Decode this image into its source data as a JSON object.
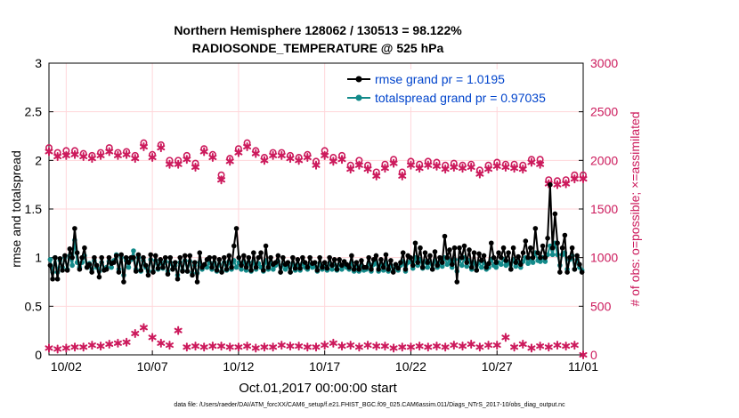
{
  "title_line1": "Northern Hemisphere 128062 / 130513 = 98.122%",
  "title_line2": "RADIOSONDE_TEMPERATURE @ 525 hPa",
  "footer": "data file: /Users/raeder/DAI/ATM_forcXX/CAM6_setup/f.e21.FHIST_BGC.f09_025.CAM6assim.011/Diags_NTrS_2017-10/obs_diag_output.nc",
  "colors": {
    "rmse": "#000000",
    "spread": "#138a8a",
    "obs": "#cc1a5c",
    "legend_text": "#0044cc"
  },
  "chart_data": {
    "type": "line",
    "xlabel": "Oct.01,2017 00:00:00 start",
    "ylabel_left": "rmse and totalspread",
    "ylabel_right": "# of obs: o=possible; ×=assimilated",
    "xlim": [
      0,
      31
    ],
    "ylim_left": [
      0,
      3
    ],
    "ylim_right": [
      0,
      3000
    ],
    "yticks_left": [
      "0",
      "0.5",
      "1",
      "1.5",
      "2",
      "2.5",
      "3"
    ],
    "yticks_right": [
      "0",
      "500",
      "1000",
      "1500",
      "2000",
      "2500",
      "3000"
    ],
    "xticks": [
      {
        "pos": 1,
        "label": "10/02"
      },
      {
        "pos": 6,
        "label": "10/07"
      },
      {
        "pos": 11,
        "label": "10/12"
      },
      {
        "pos": 16,
        "label": "10/17"
      },
      {
        "pos": 21,
        "label": "10/22"
      },
      {
        "pos": 26,
        "label": "10/27"
      },
      {
        "pos": 31,
        "label": "11/01"
      }
    ],
    "legend": [
      "rmse grand pr = 1.0195",
      "totalspread grand pr = 0.97035"
    ],
    "legend_position": "top-right",
    "rmse": [
      0.92,
      0.78,
      1.0,
      0.78,
      0.99,
      0.87,
      1.02,
      0.87,
      1.09,
      1.0,
      1.3,
      1.05,
      0.88,
      1.0,
      1.1,
      0.9,
      0.93,
      0.85,
      1.0,
      0.92,
      0.8,
      1.0,
      0.87,
      0.88,
      1.0,
      0.94,
      0.95,
      1.02,
      0.85,
      1.03,
      0.75,
      1.0,
      0.95,
      1.0,
      1.0,
      0.86,
      1.03,
      0.87,
      1.0,
      0.92,
      0.82,
      1.03,
      0.85,
      1.02,
      0.89,
      0.98,
      0.9,
      1.0,
      0.83,
      1.0,
      0.88,
      0.95,
      0.78,
      1.0,
      0.86,
      1.02,
      0.86,
      1.02,
      0.82,
      0.95,
      0.75,
      1.05,
      0.9,
      0.93,
      0.98,
      1.0,
      0.9,
      1.0,
      0.87,
      0.98,
      0.85,
      1.0,
      0.88,
      1.02,
      0.9,
      1.12,
      1.3,
      1.0,
      0.92,
      1.02,
      0.9,
      1.0,
      0.87,
      1.05,
      0.9,
      1.0,
      1.05,
      0.87,
      1.12,
      0.9,
      1.0,
      0.93,
      0.95,
      1.02,
      0.85,
      1.0,
      0.93,
      0.95,
      0.85,
      1.0,
      0.89,
      0.98,
      0.89,
      1.0,
      0.95,
      0.9,
      1.0,
      0.94,
      0.95,
      0.87,
      1.0,
      0.9,
      0.95,
      0.89,
      1.0,
      0.92,
      0.98,
      0.88,
      0.98,
      0.92,
      0.96,
      0.93,
      0.9,
      1.02,
      0.88,
      0.95,
      0.88,
      0.97,
      0.9,
      0.9,
      1.0,
      0.88,
      0.98,
      1.02,
      0.88,
      0.98,
      0.9,
      1.03,
      0.88,
      0.97,
      0.85,
      0.93,
      0.89,
      0.95,
      1.05,
      0.88,
      1.02,
      1.0,
      0.92,
      1.15,
      0.95,
      1.1,
      0.9,
      1.05,
      0.95,
      1.02,
      0.88,
      1.06,
      0.92,
      1.0,
      0.95,
      1.22,
      1.0,
      1.08,
      0.93,
      1.1,
      0.75,
      1.1,
      1.0,
      1.12,
      0.95,
      1.08,
      0.9,
      1.05,
      0.87,
      1.04,
      0.97,
      1.02,
      0.9,
      0.94,
      1.15,
      1.0,
      0.95,
      1.05,
      1.0,
      1.1,
      0.97,
      1.05,
      0.88,
      1.1,
      0.95,
      1.01,
      0.93,
      1.05,
      1.17,
      1.0,
      1.1,
      1.0,
      1.3,
      1.05,
      1.0,
      1.12,
      1.0,
      1.2,
      1.75,
      1.1,
      1.45,
      1.15,
      0.85,
      1.1,
      1.23,
      0.85,
      1.0,
      1.1,
      0.88,
      1.02,
      0.93,
      0.85
    ],
    "totalspread": [
      0.98,
      0.85,
      1.0,
      0.85,
      0.97,
      0.9,
      1.0,
      0.88,
      1.02,
      0.92,
      1.18,
      0.95,
      0.9,
      0.95,
      1.02,
      0.9,
      0.94,
      0.88,
      0.97,
      0.9,
      0.86,
      0.95,
      0.88,
      0.9,
      0.96,
      0.9,
      0.97,
      1.03,
      0.88,
      1.0,
      0.82,
      0.97,
      0.9,
      0.98,
      1.07,
      0.88,
      1.0,
      0.86,
      0.97,
      0.9,
      0.86,
      0.98,
      0.86,
      0.97,
      0.88,
      0.95,
      0.89,
      0.96,
      0.86,
      0.95,
      0.88,
      0.92,
      0.82,
      0.95,
      0.87,
      0.97,
      0.86,
      0.96,
      0.84,
      0.92,
      0.84,
      0.95,
      0.88,
      0.92,
      0.9,
      0.95,
      0.88,
      0.95,
      0.86,
      0.93,
      0.86,
      0.95,
      0.87,
      0.96,
      0.88,
      0.97,
      0.9,
      0.95,
      0.88,
      0.96,
      0.87,
      0.95,
      0.86,
      0.96,
      0.88,
      0.94,
      0.9,
      0.86,
      0.97,
      0.88,
      0.94,
      0.88,
      0.92,
      0.96,
      0.85,
      0.93,
      0.88,
      0.92,
      0.85,
      0.94,
      0.87,
      0.93,
      0.87,
      0.94,
      0.9,
      0.88,
      0.93,
      0.9,
      0.91,
      0.86,
      0.94,
      0.88,
      0.92,
      0.87,
      0.94,
      0.88,
      0.93,
      0.87,
      0.93,
      0.88,
      0.92,
      0.9,
      0.88,
      0.95,
      0.86,
      0.92,
      0.86,
      0.92,
      0.87,
      0.88,
      0.94,
      0.86,
      0.93,
      0.95,
      0.86,
      0.93,
      0.87,
      0.95,
      0.86,
      0.92,
      0.86,
      0.9,
      0.87,
      0.92,
      0.96,
      0.86,
      0.95,
      0.96,
      0.89,
      1.0,
      0.92,
      0.98,
      0.89,
      0.96,
      0.9,
      0.95,
      0.88,
      0.97,
      0.9,
      0.95,
      0.91,
      1.0,
      0.93,
      0.97,
      0.9,
      0.98,
      0.86,
      0.98,
      0.92,
      1.0,
      0.91,
      0.97,
      0.88,
      0.95,
      0.87,
      0.95,
      0.9,
      0.95,
      0.88,
      0.9,
      0.98,
      0.92,
      0.9,
      0.95,
      0.93,
      0.98,
      0.92,
      0.95,
      0.88,
      0.98,
      0.91,
      0.95,
      0.9,
      0.96,
      1.0,
      0.94,
      0.98,
      0.95,
      1.05,
      0.97,
      0.96,
      1.0,
      0.96,
      1.03,
      1.12,
      1.03,
      1.15,
      1.03,
      0.92,
      1.03,
      1.05,
      0.88,
      0.98,
      1.02,
      0.88,
      0.98,
      0.9,
      0.87
    ],
    "obs_days": [
      0,
      1,
      2,
      3,
      4,
      5,
      6,
      7,
      8,
      9,
      10,
      11,
      12,
      13,
      14,
      15,
      16,
      17,
      18,
      19,
      20,
      21,
      22,
      23,
      24,
      25,
      26,
      27,
      28,
      29,
      30,
      31
    ],
    "possible_00": [
      2130,
      2100,
      2070,
      2080,
      2080,
      2050,
      2060,
      2000,
      2050,
      2120,
      1850,
      2120,
      2100,
      2080,
      2050,
      2060,
      2100,
      2050,
      2000,
      1880,
      2010,
      1990,
      1990,
      1950,
      1950,
      1900,
      1980,
      1960,
      2010,
      1800,
      1800,
      1850
    ],
    "possible_12": [
      2080,
      2100,
      2050,
      2130,
      2090,
      2180,
      2160,
      2000,
      1970,
      2060,
      2020,
      2180,
      2030,
      2080,
      2030,
      1990,
      2030,
      1950,
      1950,
      1960,
      1880,
      1960,
      1980,
      1970,
      1960,
      1950,
      1960,
      1950,
      2010,
      1790,
      1850,
      1830
    ],
    "assimilated_00": [
      2090,
      2050,
      2040,
      2050,
      2050,
      2020,
      2030,
      1960,
      2010,
      2090,
      1800,
      2080,
      2070,
      2050,
      2020,
      2030,
      2050,
      2010,
      1950,
      1840,
      1970,
      1950,
      1950,
      1910,
      1920,
      1860,
      1940,
      1920,
      1980,
      1760,
      1760,
      1810
    ],
    "assimilated_12": [
      2040,
      2060,
      2020,
      2090,
      2060,
      2140,
      2130,
      1960,
      1930,
      2030,
      1990,
      2140,
      2000,
      2050,
      2000,
      1950,
      1990,
      1910,
      1910,
      1920,
      1840,
      1920,
      1940,
      1930,
      1930,
      1910,
      1930,
      1910,
      1960,
      1750,
      1810,
      1790
    ],
    "rejected_00": [
      70,
      70,
      80,
      90,
      120,
      220,
      180,
      100,
      80,
      80,
      90,
      80,
      70,
      80,
      90,
      80,
      100,
      90,
      80,
      90,
      70,
      80,
      80,
      80,
      90,
      80,
      100,
      80,
      70,
      80,
      90,
      0
    ],
    "rejected_12": [
      60,
      80,
      100,
      110,
      130,
      280,
      120,
      250,
      90,
      90,
      80,
      90,
      80,
      100,
      90,
      80,
      120,
      100,
      100,
      90,
      80,
      90,
      90,
      100,
      110,
      100,
      180,
      110,
      90,
      100,
      100,
      100
    ]
  }
}
